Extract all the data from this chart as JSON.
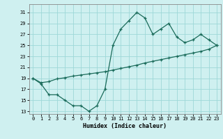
{
  "title": "",
  "xlabel": "Humidex (Indice chaleur)",
  "bg_color": "#cff0f0",
  "line_color": "#1a6b5a",
  "grid_color": "#9dd8d8",
  "xlim": [
    -0.5,
    23.5
  ],
  "ylim": [
    12.5,
    32.5
  ],
  "yticks": [
    13,
    15,
    17,
    19,
    21,
    23,
    25,
    27,
    29,
    31
  ],
  "xticks": [
    0,
    1,
    2,
    3,
    4,
    5,
    6,
    7,
    8,
    9,
    10,
    11,
    12,
    13,
    14,
    15,
    16,
    17,
    18,
    19,
    20,
    21,
    22,
    23
  ],
  "line1_x": [
    0,
    1,
    2,
    3,
    4,
    5,
    6,
    7,
    8,
    9,
    10,
    11,
    12,
    13,
    14,
    15,
    16,
    17,
    18,
    19,
    20,
    21,
    22,
    23
  ],
  "line1_y": [
    19,
    18,
    16,
    16,
    15,
    14,
    14,
    13,
    14,
    17,
    25,
    28,
    29.5,
    31,
    30,
    27,
    28,
    29,
    26.5,
    25.5,
    26,
    27,
    26,
    25
  ],
  "line2_x": [
    0,
    1,
    2,
    3,
    4,
    5,
    6,
    7,
    8,
    9,
    10,
    11,
    12,
    13,
    14,
    15,
    16,
    17,
    18,
    19,
    20,
    21,
    22,
    23
  ],
  "line2_y": [
    19,
    18.2,
    18.4,
    18.9,
    19.1,
    19.4,
    19.6,
    19.8,
    20.0,
    20.2,
    20.5,
    20.8,
    21.1,
    21.4,
    21.8,
    22.1,
    22.4,
    22.7,
    23.0,
    23.3,
    23.6,
    23.9,
    24.3,
    25.0
  ]
}
